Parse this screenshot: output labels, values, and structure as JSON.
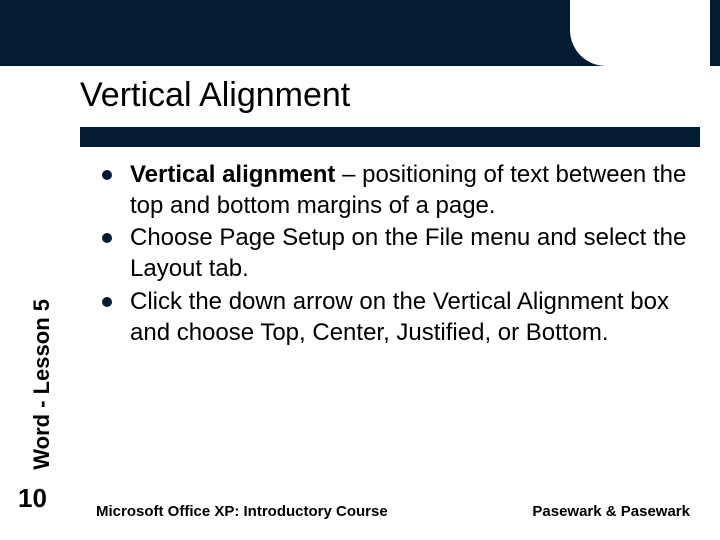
{
  "colors": {
    "brand_dark": "#031c33",
    "background": "#ffffff",
    "text": "#000000"
  },
  "typography": {
    "title_fontsize": 34,
    "body_fontsize": 24,
    "sidebar_fontsize": 22,
    "footer_fontsize": 15,
    "pagenum_fontsize": 26
  },
  "title": "Vertical Alignment",
  "sidebar_label": "Word - Lesson 5",
  "page_number": "10",
  "bullets": [
    {
      "bold": "Vertical alignment",
      "rest": " – positioning of text between the top and bottom margins of a page."
    },
    {
      "bold": "",
      "rest": "Choose Page Setup on the File menu and select the Layout tab."
    },
    {
      "bold": "",
      "rest": "Click the down arrow on the Vertical Alignment box and choose Top, Center, Justified, or Bottom."
    }
  ],
  "footer": {
    "left": "Microsoft Office XP:  Introductory Course",
    "right": "Pasewark & Pasewark"
  }
}
